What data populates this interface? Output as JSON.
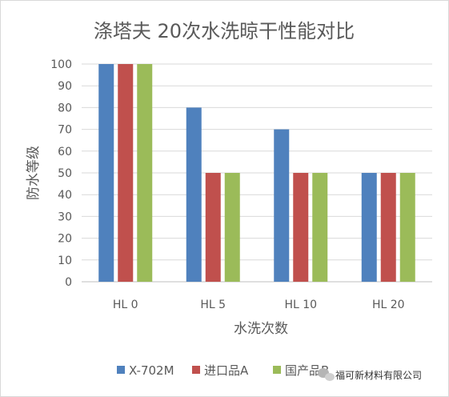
{
  "chart_data": {
    "type": "bar",
    "title": "涤塔夫  20次水洗晾干性能对比",
    "xlabel": "水洗次数",
    "ylabel": "防水等级",
    "categories": [
      "HL 0",
      "HL 5",
      "HL 10",
      "HL 20"
    ],
    "series": [
      {
        "name": "X-702M",
        "values": [
          100,
          80,
          70,
          50
        ],
        "color": "#4f81bd"
      },
      {
        "name": "进口品A",
        "values": [
          100,
          50,
          50,
          50
        ],
        "color": "#c0504d"
      },
      {
        "name": "国产品B",
        "values": [
          100,
          50,
          50,
          50
        ],
        "color": "#9bbb59"
      }
    ],
    "ylim": [
      0,
      100
    ],
    "yticks": [
      0,
      10,
      20,
      30,
      40,
      50,
      60,
      70,
      80,
      90,
      100
    ],
    "grid": "horizontal",
    "legend_position": "bottom"
  },
  "watermark": {
    "text": "福可新材料有限公司",
    "icon": "wechat-icon"
  }
}
